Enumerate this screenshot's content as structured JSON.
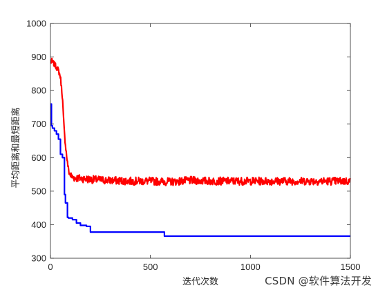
{
  "chart_data": {
    "type": "line",
    "title": "",
    "xlabel": "迭代次数",
    "ylabel": "平均距离和最短距离",
    "xlim": [
      0,
      1500
    ],
    "ylim": [
      300,
      1000
    ],
    "xticks": [
      0,
      500,
      1000,
      1500
    ],
    "yticks": [
      300,
      400,
      500,
      600,
      700,
      800,
      900,
      1000
    ],
    "xtick_labels": [
      "0",
      "500",
      "1000",
      "1500"
    ],
    "ytick_labels": [
      "300",
      "400",
      "500",
      "600",
      "700",
      "800",
      "900",
      "1000"
    ],
    "grid": false,
    "legend": "none",
    "series": [
      {
        "color": "#ff0000",
        "style": "noisy",
        "noise_amplitude": 9,
        "x": [
          1,
          5,
          10,
          20,
          30,
          40,
          50,
          55,
          60,
          65,
          70,
          75,
          80,
          85,
          90,
          95,
          100,
          110,
          120,
          150,
          200,
          300,
          400,
          500,
          600,
          700,
          800,
          900,
          1000,
          1100,
          1200,
          1300,
          1400,
          1500
        ],
        "y": [
          880,
          890,
          885,
          878,
          870,
          860,
          840,
          810,
          780,
          720,
          670,
          640,
          610,
          585,
          565,
          553,
          548,
          542,
          540,
          538,
          535,
          532,
          530,
          530,
          528,
          532,
          530,
          530,
          530,
          530,
          530,
          530,
          530,
          530
        ]
      },
      {
        "color": "#0000ff",
        "style": "step",
        "x": [
          1,
          5,
          10,
          20,
          30,
          40,
          50,
          60,
          70,
          75,
          85,
          90,
          110,
          130,
          150,
          180,
          200,
          570,
          1500
        ],
        "y": [
          760,
          695,
          688,
          680,
          670,
          655,
          610,
          600,
          490,
          465,
          422,
          420,
          415,
          405,
          398,
          395,
          378,
          366,
          366
        ]
      }
    ]
  },
  "watermark": "CSDN @软件算法开发"
}
